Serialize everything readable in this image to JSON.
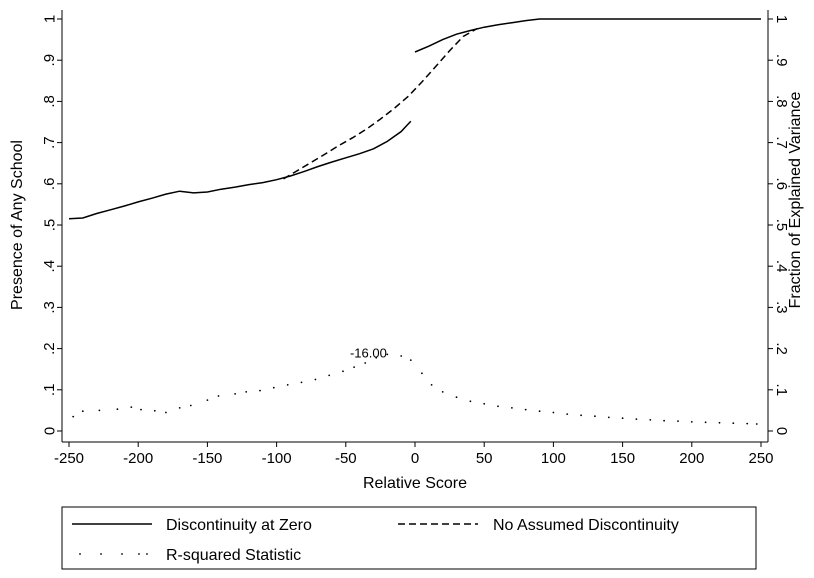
{
  "chart_data": {
    "type": "line",
    "title": "",
    "xlabel": "Relative Score",
    "ylabel": "Presence of Any School",
    "y2label": "Fraction of Explained Variance",
    "xlim": [
      -255,
      255
    ],
    "ylim": [
      -0.03,
      1.03
    ],
    "xticks": [
      -250,
      -200,
      -150,
      -100,
      -50,
      0,
      50,
      100,
      150,
      200,
      250
    ],
    "yticks": [
      {
        "v": 0,
        "label": "0"
      },
      {
        "v": 0.1,
        "label": ".1"
      },
      {
        "v": 0.2,
        "label": ".2"
      },
      {
        "v": 0.3,
        "label": ".3"
      },
      {
        "v": 0.4,
        "label": ".4"
      },
      {
        "v": 0.5,
        "label": ".5"
      },
      {
        "v": 0.6,
        "label": ".6"
      },
      {
        "v": 0.7,
        "label": ".7"
      },
      {
        "v": 0.8,
        "label": ".8"
      },
      {
        "v": 0.9,
        "label": ".9"
      },
      {
        "v": 1,
        "label": "1"
      }
    ],
    "grid": false,
    "legend_position": "bottom",
    "series": [
      {
        "name": "Discontinuity at Zero",
        "style": "solid",
        "segments": [
          [
            [
              -250,
              0.515
            ],
            [
              -240,
              0.517
            ],
            [
              -230,
              0.528
            ],
            [
              -220,
              0.537
            ],
            [
              -210,
              0.546
            ],
            [
              -200,
              0.556
            ],
            [
              -190,
              0.565
            ],
            [
              -180,
              0.575
            ],
            [
              -170,
              0.582
            ],
            [
              -160,
              0.578
            ],
            [
              -150,
              0.58
            ],
            [
              -140,
              0.587
            ],
            [
              -130,
              0.592
            ],
            [
              -120,
              0.598
            ],
            [
              -110,
              0.603
            ],
            [
              -100,
              0.61
            ],
            [
              -90,
              0.619
            ],
            [
              -80,
              0.63
            ],
            [
              -70,
              0.642
            ],
            [
              -60,
              0.653
            ],
            [
              -50,
              0.663
            ],
            [
              -40,
              0.673
            ],
            [
              -30,
              0.685
            ],
            [
              -20,
              0.703
            ],
            [
              -10,
              0.727
            ],
            [
              -3,
              0.752
            ]
          ],
          [
            [
              0,
              0.92
            ],
            [
              10,
              0.934
            ],
            [
              20,
              0.95
            ],
            [
              30,
              0.963
            ],
            [
              40,
              0.972
            ],
            [
              50,
              0.98
            ],
            [
              60,
              0.986
            ],
            [
              70,
              0.991
            ],
            [
              80,
              0.996
            ],
            [
              90,
              1.0
            ],
            [
              100,
              1.0
            ],
            [
              150,
              1.0
            ],
            [
              200,
              1.0
            ],
            [
              250,
              1.0
            ]
          ]
        ]
      },
      {
        "name": "No Assumed Discontinuity",
        "style": "dashed",
        "segments": [
          [
            [
              -95,
              0.612
            ],
            [
              -85,
              0.632
            ],
            [
              -75,
              0.652
            ],
            [
              -65,
              0.672
            ],
            [
              -55,
              0.693
            ],
            [
              -45,
              0.712
            ],
            [
              -35,
              0.733
            ],
            [
              -25,
              0.757
            ],
            [
              -15,
              0.783
            ],
            [
              -5,
              0.812
            ],
            [
              5,
              0.847
            ],
            [
              15,
              0.885
            ],
            [
              25,
              0.923
            ],
            [
              35,
              0.958
            ],
            [
              45,
              0.977
            ]
          ]
        ]
      },
      {
        "name": "R-squared Statistic",
        "style": "dotted",
        "points": [
          [
            -247,
            0.035
          ],
          [
            -240,
            0.048
          ],
          [
            -228,
            0.05
          ],
          [
            -215,
            0.053
          ],
          [
            -205,
            0.058
          ],
          [
            -198,
            0.052
          ],
          [
            -188,
            0.049
          ],
          [
            -180,
            0.045
          ],
          [
            -170,
            0.056
          ],
          [
            -162,
            0.062
          ],
          [
            -150,
            0.075
          ],
          [
            -142,
            0.085
          ],
          [
            -130,
            0.09
          ],
          [
            -122,
            0.095
          ],
          [
            -112,
            0.098
          ],
          [
            -102,
            0.105
          ],
          [
            -92,
            0.112
          ],
          [
            -82,
            0.118
          ],
          [
            -72,
            0.125
          ],
          [
            -62,
            0.135
          ],
          [
            -52,
            0.145
          ],
          [
            -44,
            0.155
          ],
          [
            -36,
            0.165
          ],
          [
            -28,
            0.178
          ],
          [
            -20,
            0.186
          ],
          [
            -10,
            0.182
          ],
          [
            -3,
            0.172
          ],
          [
            5,
            0.14
          ],
          [
            12,
            0.112
          ],
          [
            20,
            0.095
          ],
          [
            30,
            0.082
          ],
          [
            40,
            0.072
          ],
          [
            50,
            0.066
          ],
          [
            60,
            0.06
          ],
          [
            70,
            0.056
          ],
          [
            80,
            0.052
          ],
          [
            90,
            0.048
          ],
          [
            100,
            0.045
          ],
          [
            110,
            0.041
          ],
          [
            120,
            0.038
          ],
          [
            130,
            0.036
          ],
          [
            140,
            0.033
          ],
          [
            150,
            0.031
          ],
          [
            160,
            0.029
          ],
          [
            170,
            0.027
          ],
          [
            180,
            0.025
          ],
          [
            190,
            0.024
          ],
          [
            200,
            0.022
          ],
          [
            210,
            0.021
          ],
          [
            220,
            0.02
          ],
          [
            230,
            0.019
          ],
          [
            240,
            0.018
          ],
          [
            247,
            0.017
          ]
        ]
      }
    ],
    "annotations": [
      {
        "text": "-16.00",
        "x": -16,
        "y": 0.19
      }
    ]
  }
}
